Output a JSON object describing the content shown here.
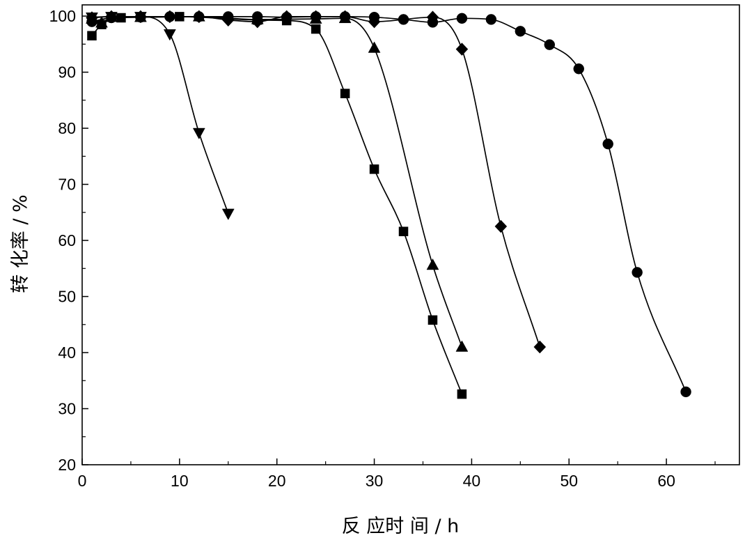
{
  "chart_data": {
    "type": "scatter",
    "title": "",
    "xlabel": "反 应时 间 / h",
    "ylabel": "转 化率  / %",
    "xlim": [
      0,
      67.5
    ],
    "ylim": [
      20,
      102
    ],
    "xticks": [
      0,
      10,
      20,
      30,
      40,
      50,
      60
    ],
    "xtick_labels": [
      "0",
      "10",
      "20",
      "30",
      "40",
      "50",
      "60"
    ],
    "yticks": [
      20,
      30,
      40,
      50,
      60,
      70,
      80,
      90,
      100
    ],
    "ytick_labels": [
      "20",
      "30",
      "40",
      "50",
      "60",
      "70",
      "80",
      "90",
      "100"
    ],
    "grid": false,
    "legend": "none",
    "series": [
      {
        "marker": "triangle-down",
        "color": "#000000",
        "x": [
          1,
          3,
          6,
          9,
          12,
          15
        ],
        "y": [
          99.8,
          99.9,
          99.9,
          96.8,
          79.2,
          64.8
        ]
      },
      {
        "marker": "square",
        "color": "#000000",
        "x": [
          1,
          2,
          4,
          6,
          10,
          18,
          21,
          24,
          27,
          30,
          33,
          36,
          39
        ],
        "y": [
          96.5,
          98.5,
          99.7,
          99.8,
          99.9,
          99.3,
          99.2,
          97.7,
          86.2,
          72.7,
          61.6,
          45.8,
          32.6
        ]
      },
      {
        "marker": "triangle-up",
        "color": "#000000",
        "x": [
          1,
          2,
          3,
          6,
          12,
          18,
          24,
          27,
          30,
          36,
          39
        ],
        "y": [
          99.5,
          98.8,
          99.8,
          99.8,
          99.9,
          99.4,
          99.5,
          99.6,
          94.3,
          55.6,
          41.0
        ]
      },
      {
        "marker": "diamond",
        "color": "#000000",
        "x": [
          1,
          3,
          6,
          9,
          12,
          15,
          18,
          21,
          24,
          27,
          30,
          36,
          39,
          43,
          47
        ],
        "y": [
          99.7,
          99.9,
          99.9,
          99.9,
          99.9,
          99.3,
          99.0,
          99.9,
          99.9,
          99.9,
          99.0,
          99.8,
          94.1,
          62.5,
          41.0
        ]
      },
      {
        "marker": "circle",
        "color": "#000000",
        "x": [
          1,
          3,
          6,
          9,
          12,
          15,
          18,
          21,
          24,
          27,
          30,
          33,
          36,
          39,
          42,
          45,
          48,
          51,
          54,
          57,
          62
        ],
        "y": [
          99.0,
          99.7,
          99.8,
          99.9,
          99.9,
          99.9,
          99.9,
          99.8,
          99.9,
          99.9,
          99.8,
          99.4,
          98.9,
          99.6,
          99.4,
          97.3,
          94.9,
          90.6,
          77.2,
          54.3,
          33.0
        ]
      }
    ]
  }
}
